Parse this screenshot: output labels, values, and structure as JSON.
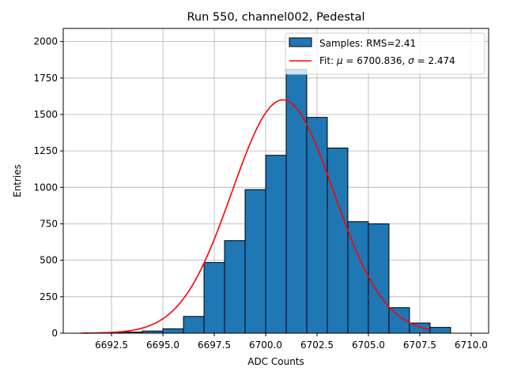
{
  "chart_data": {
    "type": "bar",
    "title": "Run 550, channel002, Pedestal",
    "xlabel": "ADC Counts",
    "ylabel": "Entries",
    "xlim": [
      6690.15,
      6710.85
    ],
    "ylim": [
      0,
      2090
    ],
    "xticks": [
      6692.5,
      6695.0,
      6697.5,
      6700.0,
      6702.5,
      6705.0,
      6707.5,
      6710.0
    ],
    "yticks": [
      0,
      250,
      500,
      750,
      1000,
      1250,
      1500,
      1750,
      2000
    ],
    "grid": true,
    "legend_position": "top-right",
    "histogram": {
      "name": "Samples: RMS=2.41",
      "bin_edges": [
        6691,
        6692,
        6693,
        6694,
        6695,
        6696,
        6697,
        6698,
        6699,
        6700,
        6701,
        6702,
        6703,
        6704,
        6705,
        6706,
        6707,
        6708,
        6709,
        6710
      ],
      "counts": [
        0,
        3,
        8,
        15,
        30,
        115,
        485,
        635,
        985,
        1220,
        1810,
        1480,
        1270,
        765,
        750,
        175,
        70,
        40,
        0
      ]
    },
    "fit": {
      "name_prefix": "Fit: ",
      "name_mu": "μ",
      "name_mid": " = 6700.836, ",
      "name_sigma": "σ",
      "name_suffix": " = 2.474",
      "mu": 6700.836,
      "sigma": 2.474,
      "amplitude": 1600,
      "x_range": [
        6691,
        6708
      ]
    },
    "colors": {
      "bar_fill": "#1f77b4",
      "bar_edge": "#000000",
      "fit_line": "#ff0000",
      "grid": "#b0b0b0"
    }
  }
}
